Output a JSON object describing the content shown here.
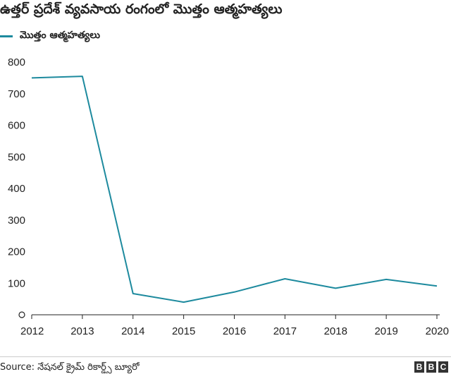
{
  "header": {
    "title": "ఉత్తర్ ప్రదేశ్ వ్యవసాయ రంగంలో మొత్తం ఆత్మహత్యలు"
  },
  "legend": {
    "label": "మొత్తం ఆత్మహత్యలు",
    "color": "#1d8a9e"
  },
  "footer": {
    "source": "Source: నేషనల్ క్రైమ్ రికార్డ్స్ బ్యూరో",
    "logo_letters": [
      "B",
      "B",
      "C"
    ]
  },
  "chart_data": {
    "type": "line",
    "title": "ఉత్తర్ ప్రదేశ్ వ్యవసాయ రంగంలో మొత్తం ఆత్మహత్యలు",
    "xlabel": "",
    "ylabel": "",
    "x": [
      "2012",
      "2013",
      "2014",
      "2015",
      "2016",
      "2017",
      "2018",
      "2019",
      "2020"
    ],
    "series": [
      {
        "name": "మొత్తం ఆత్మహత్యలు",
        "color": "#1d8a9e",
        "values": [
          750,
          755,
          67,
          40,
          72,
          114,
          84,
          112,
          91
        ]
      }
    ],
    "ylim": [
      0,
      800
    ],
    "yticks": [
      0,
      100,
      200,
      300,
      400,
      500,
      600,
      700,
      800
    ],
    "grid": false,
    "legend_position": "top-left"
  }
}
